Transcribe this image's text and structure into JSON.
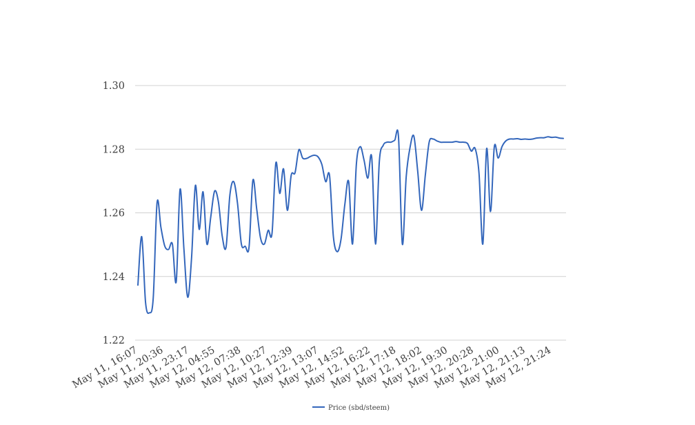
{
  "chart_data": {
    "type": "line",
    "title": "",
    "xlabel": "",
    "ylabel": "",
    "ylim": [
      1.22,
      1.3
    ],
    "yticks": [
      "1.22",
      "1.24",
      "1.26",
      "1.28",
      "1.30"
    ],
    "ytick_values": [
      1.22,
      1.24,
      1.26,
      1.28,
      1.3
    ],
    "xtick_labels": [
      "May 11, 16:07",
      "May 11, 20:36",
      "May 11, 23:17",
      "May 12, 04:55",
      "May 12, 07:38",
      "May 12, 10:27",
      "May 12, 12:39",
      "May 12, 13:07",
      "May 12, 14:52",
      "May 12, 16:22",
      "May 12, 17:18",
      "May 12, 18:02",
      "May 12, 19:30",
      "May 12, 20:28",
      "May 12, 21:00",
      "May 12, 21:13",
      "May 12, 21:24"
    ],
    "grid": true,
    "legend_position": "bottom",
    "series": [
      {
        "name": "Price (sbd/steem)",
        "color": "#3366bb",
        "values": [
          1.2373,
          1.2525,
          1.2318,
          1.2286,
          1.2332,
          1.2632,
          1.2555,
          1.2496,
          1.2485,
          1.2502,
          1.2384,
          1.2674,
          1.2488,
          1.2335,
          1.2458,
          1.2686,
          1.2548,
          1.2666,
          1.2502,
          1.2586,
          1.2668,
          1.2635,
          1.2527,
          1.2492,
          1.2656,
          1.2698,
          1.2629,
          1.2502,
          1.2495,
          1.2492,
          1.2702,
          1.2612,
          1.2521,
          1.2502,
          1.2545,
          1.2536,
          1.2757,
          1.2661,
          1.2738,
          1.2608,
          1.2718,
          1.2726,
          1.2798,
          1.2772,
          1.2771,
          1.2777,
          1.2781,
          1.2776,
          1.2752,
          1.2698,
          1.2718,
          1.2526,
          1.2478,
          1.2517,
          1.2627,
          1.2698,
          1.2502,
          1.2752,
          1.2808,
          1.2766,
          1.2709,
          1.2776,
          1.2502,
          1.2762,
          1.2812,
          1.2822,
          1.2822,
          1.2828,
          1.2838,
          1.2502,
          1.2712,
          1.2805,
          1.2841,
          1.2732,
          1.2608,
          1.2719,
          1.2822,
          1.2832,
          1.2826,
          1.2822,
          1.2822,
          1.2822,
          1.2822,
          1.2824,
          1.2822,
          1.2822,
          1.2818,
          1.2794,
          1.2802,
          1.2725,
          1.2502,
          1.2802,
          1.2604,
          1.2808,
          1.2772,
          1.2808,
          1.2826,
          1.2832,
          1.2832,
          1.2833,
          1.2831,
          1.2832,
          1.2831,
          1.2832,
          1.2835,
          1.2836,
          1.2836,
          1.2839,
          1.2837,
          1.2838,
          1.2835,
          1.2834
        ]
      }
    ]
  }
}
